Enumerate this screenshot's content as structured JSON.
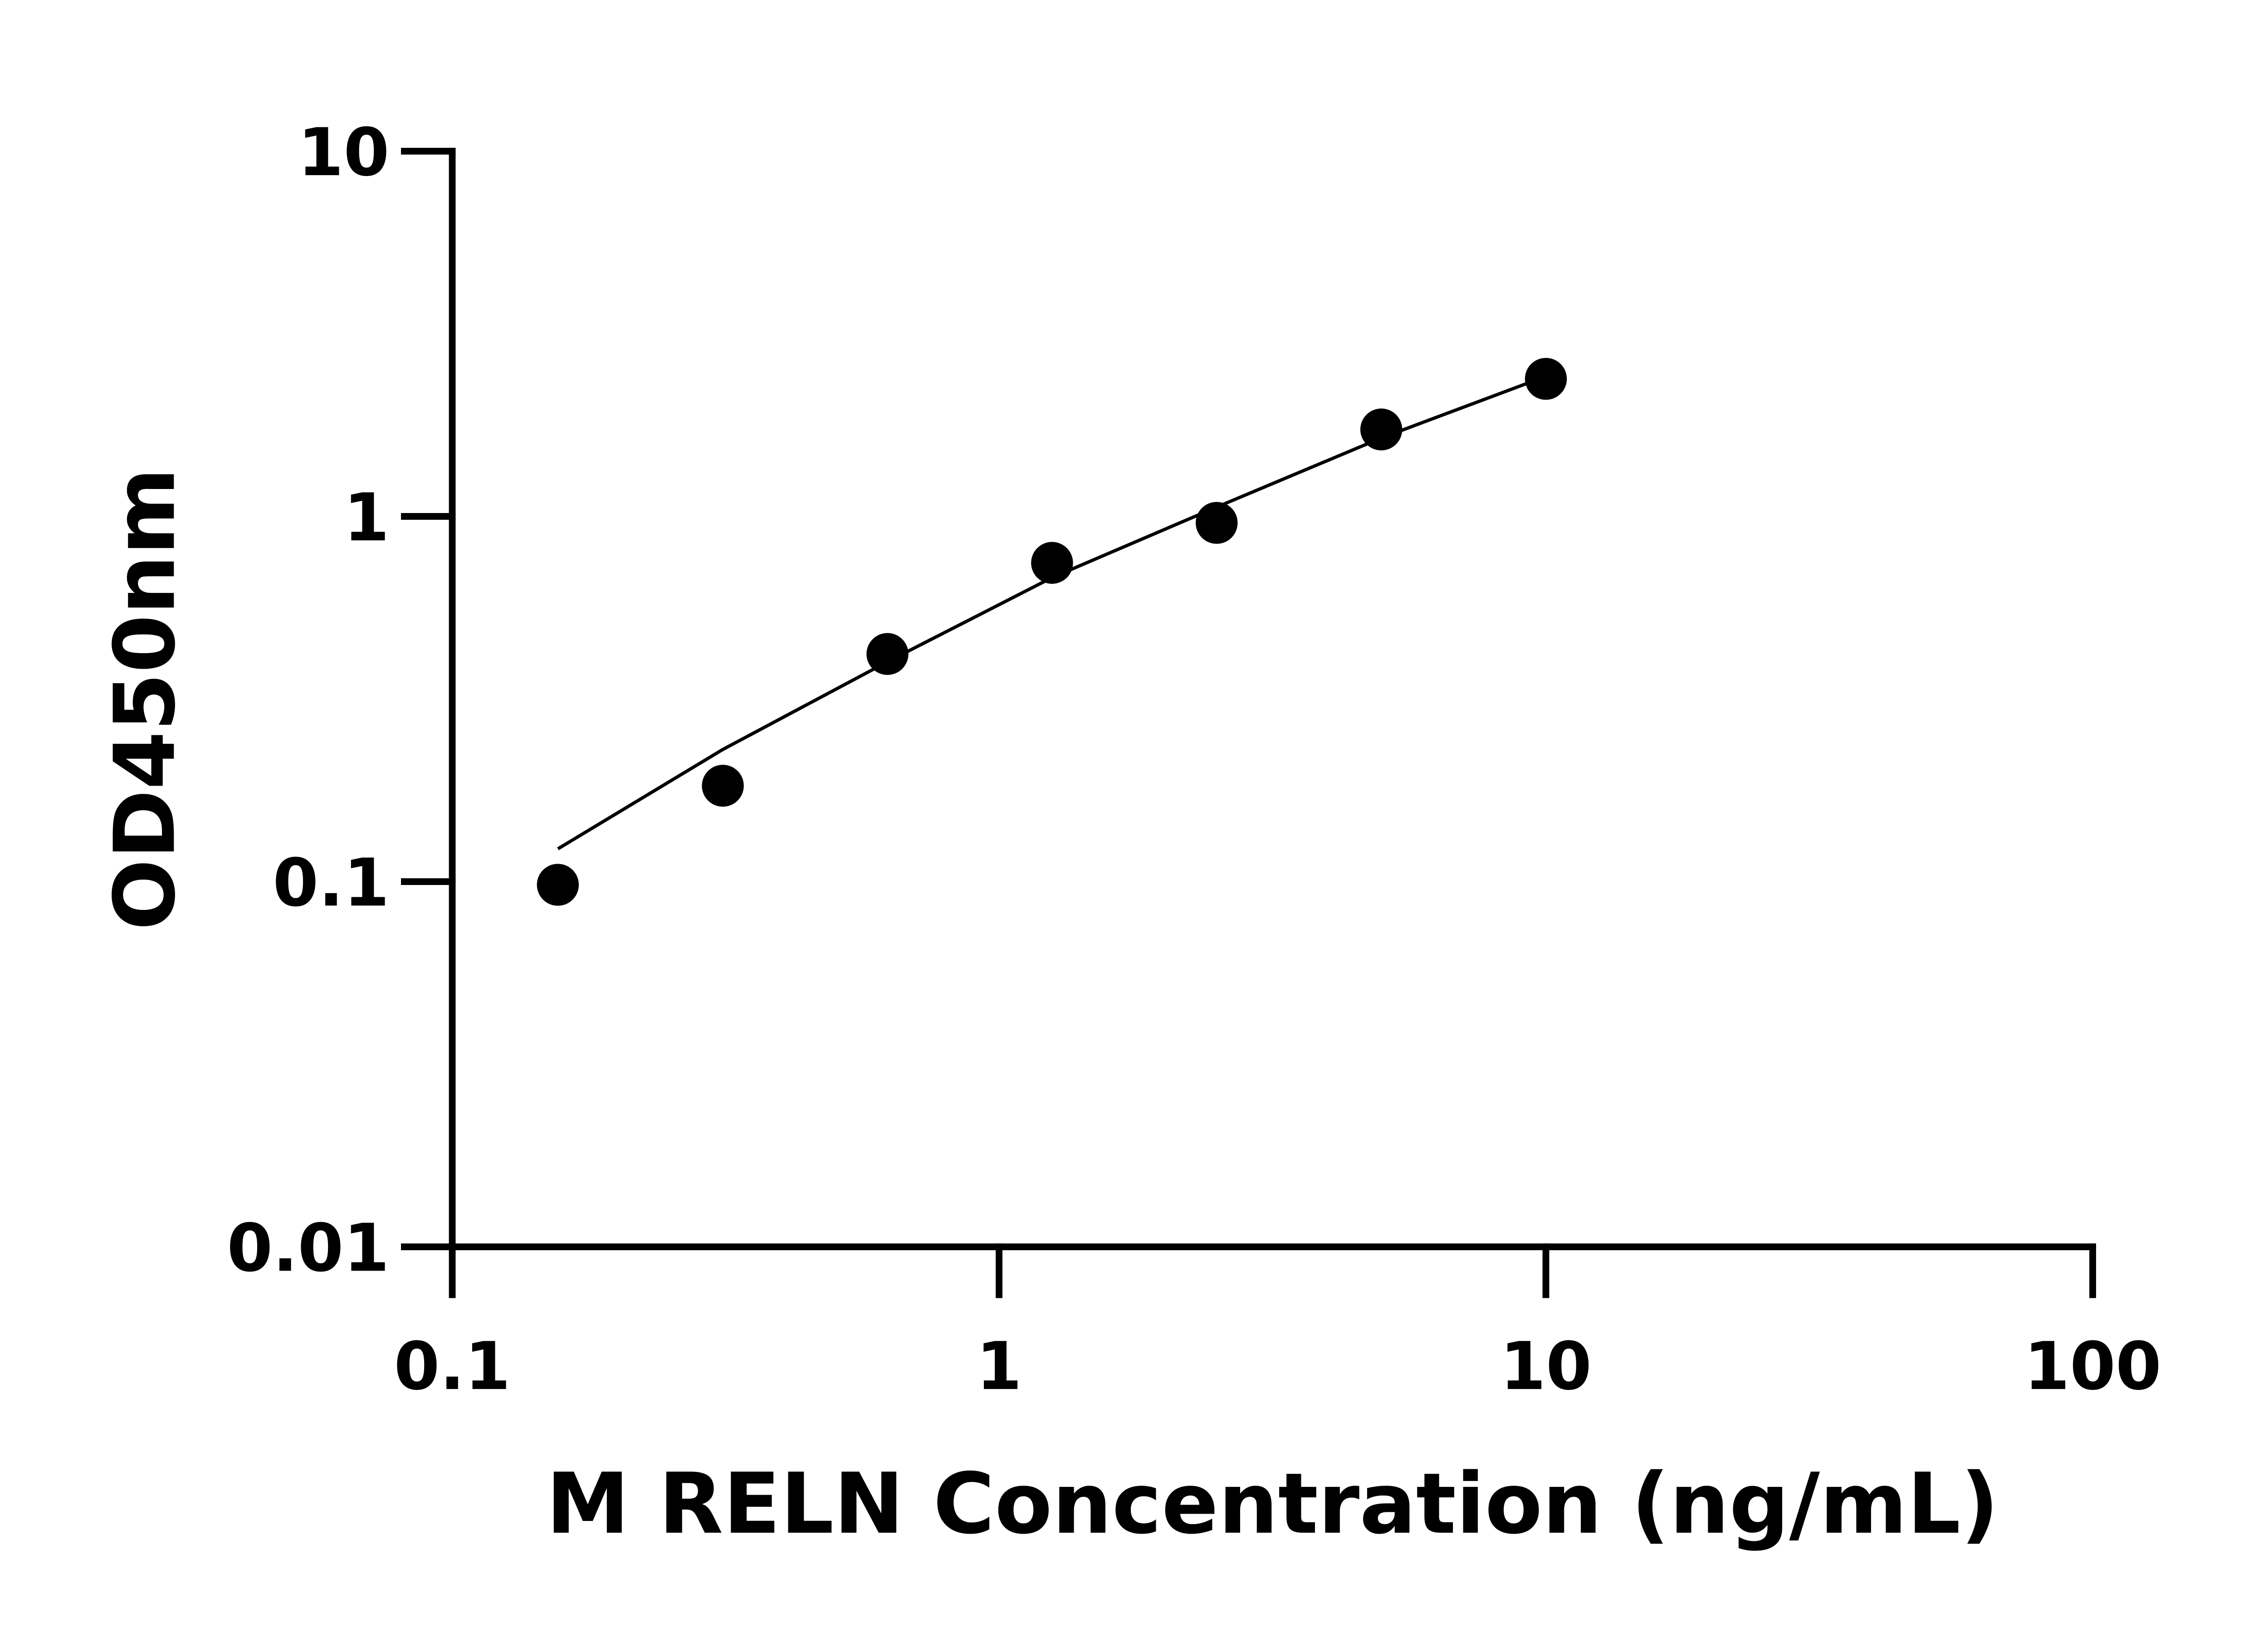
{
  "chart_data": {
    "type": "scatter",
    "title": "",
    "xlabel": "M RELN Concentration (ng/mL)",
    "ylabel": "OD450nm",
    "xscale": "log",
    "yscale": "log",
    "xlim": [
      0.1,
      100
    ],
    "ylim": [
      0.01,
      10
    ],
    "xticks": [
      "0.1",
      "1",
      "10",
      "100"
    ],
    "yticks": [
      "0.01",
      "0.1",
      "1",
      "10"
    ],
    "grid": false,
    "series": [
      {
        "type": "scatter",
        "x": [
          0.156,
          0.3125,
          0.625,
          1.25,
          2.5,
          5,
          10
        ],
        "y": [
          0.098,
          0.183,
          0.42,
          0.746,
          0.96,
          1.73,
          2.38
        ]
      },
      {
        "type": "line",
        "x": [
          0.156,
          0.3125,
          0.625,
          1.25,
          2.5,
          5,
          9.5
        ],
        "y": [
          0.123,
          0.23,
          0.4,
          0.68,
          1.06,
          1.64,
          2.35
        ]
      }
    ],
    "colors": {
      "points": "#000000",
      "line": "#000000"
    }
  }
}
